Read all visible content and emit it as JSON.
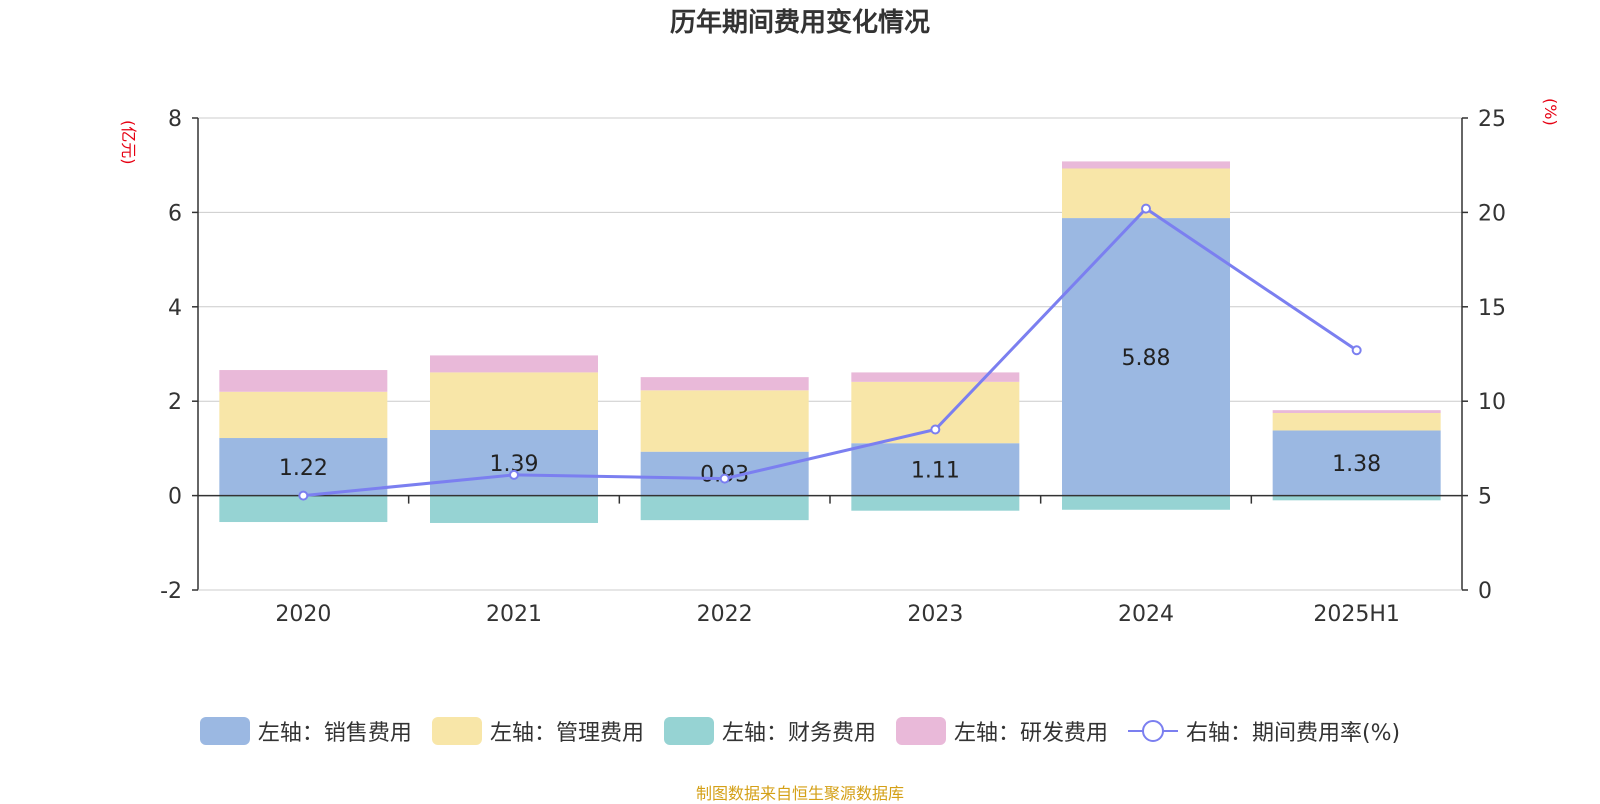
{
  "chart_data": {
    "type": "bar",
    "title": "历年期间费用变化情况",
    "categories": [
      "2020",
      "2021",
      "2022",
      "2023",
      "2024",
      "2025H1"
    ],
    "left_axis": {
      "unit": "(亿元)",
      "ylim": [
        -2,
        8
      ],
      "ticks": [
        -2,
        0,
        2,
        4,
        6,
        8
      ]
    },
    "right_axis": {
      "unit": "(%)",
      "ylim": [
        0,
        25
      ],
      "ticks": [
        0,
        5,
        10,
        15,
        20,
        25
      ]
    },
    "series": [
      {
        "name": "左轴：销售费用",
        "type": "bar",
        "stack": "pos",
        "color": "#9bb8e2",
        "values": [
          1.22,
          1.39,
          0.93,
          1.11,
          5.88,
          1.38
        ],
        "labels": [
          "1.22",
          "1.39",
          "0.93",
          "1.11",
          "5.88",
          "1.38"
        ]
      },
      {
        "name": "左轴：管理费用",
        "type": "bar",
        "stack": "pos",
        "color": "#f8e6a8",
        "values": [
          0.98,
          1.22,
          1.3,
          1.3,
          1.05,
          0.37
        ]
      },
      {
        "name": "左轴：财务费用",
        "type": "bar",
        "stack": "neg",
        "color": "#96d3d3",
        "values": [
          -0.56,
          -0.58,
          -0.52,
          -0.32,
          -0.3,
          -0.1
        ]
      },
      {
        "name": "左轴：研发费用",
        "type": "bar",
        "stack": "pos",
        "color": "#e9b9d9",
        "values": [
          0.46,
          0.36,
          0.28,
          0.2,
          0.15,
          0.06
        ]
      },
      {
        "name": "右轴：期间费用率(%)",
        "type": "line",
        "axis": "right",
        "color": "#7b7ff0",
        "values": [
          5.0,
          6.1,
          5.9,
          8.5,
          20.2,
          12.7
        ]
      }
    ],
    "grid": true,
    "legend_position": "bottom"
  },
  "source_note": "制图数据来自恒生聚源数据库"
}
